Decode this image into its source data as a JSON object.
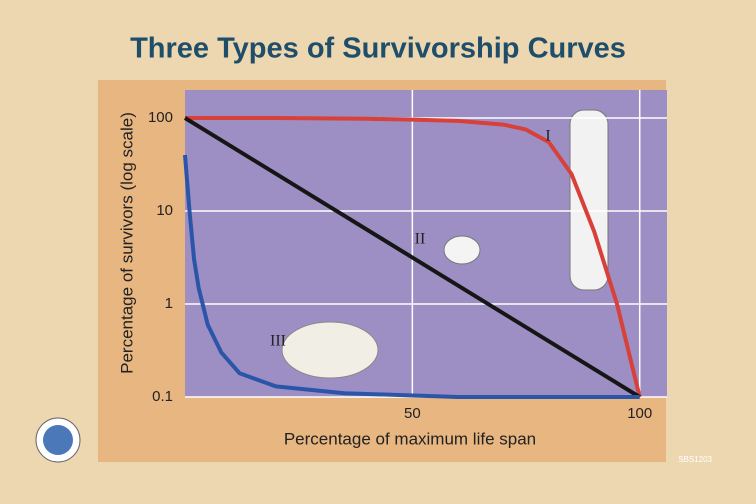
{
  "chart_data": {
    "type": "line",
    "title": "Three Types of Survivorship Curves",
    "x_label": "Percentage of maximum life span",
    "y_label": "Percentage of survivors (log scale)",
    "yscale": "log",
    "grid": true,
    "xlim": [
      0,
      106
    ],
    "xticks": [
      50,
      100
    ],
    "ylim": [
      0.1,
      200
    ],
    "yticks": [
      0.1,
      1,
      10,
      100
    ],
    "series": [
      {
        "name": "I",
        "color": "#d8403a",
        "x": [
          0,
          20,
          40,
          50,
          60,
          70,
          75,
          80,
          85,
          90,
          95,
          100
        ],
        "values": [
          100,
          100,
          98,
          96,
          93,
          85,
          75,
          55,
          25,
          6,
          1,
          0.1
        ]
      },
      {
        "name": "II",
        "color": "#161616",
        "x": [
          0,
          100
        ],
        "values": [
          100,
          0.1
        ]
      },
      {
        "name": "III",
        "color": "#2a55a8",
        "x": [
          0,
          1,
          2,
          3,
          5,
          8,
          12,
          20,
          35,
          60,
          100
        ],
        "values": [
          40,
          10,
          3,
          1.5,
          0.6,
          0.3,
          0.18,
          0.13,
          0.11,
          0.1,
          0.1
        ]
      }
    ],
    "footnote": "SBS1203"
  }
}
